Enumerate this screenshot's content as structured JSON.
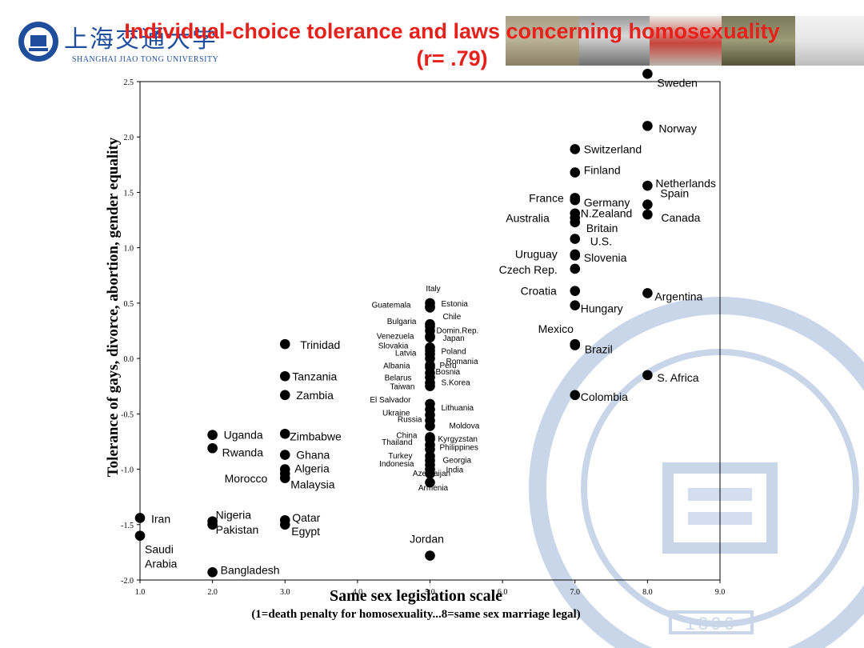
{
  "title_line1": "Individual-choice tolerance and laws concerning homosexuality",
  "title_line2": "(r= .79)",
  "logo": {
    "name_cn": "上海交通大学",
    "name_en": "SHANGHAI JIAO TONG UNIVERSITY",
    "year": "1896"
  },
  "colors": {
    "title": "#e8201c",
    "brand": "#1f4e9c",
    "point": "#000000"
  },
  "chart_data": {
    "type": "scatter",
    "xlabel": "Same sex legislation scale",
    "xlabel_note": "(1=death penalty for homosexuality...8=same sex marriage legal)",
    "ylabel": "Tolerance of gays, divorce, abortion, gender equality",
    "xlim": [
      1.0,
      9.0
    ],
    "ylim": [
      -2.0,
      2.5
    ],
    "x_ticks": [
      "1.0",
      "2.0",
      "3.0",
      "4.0",
      "5.0",
      "6.0",
      "7.0",
      "8.0",
      "9.0"
    ],
    "y_ticks": [
      "2.5",
      "2.0",
      "1.5",
      "1.0",
      "0.5",
      "0.0",
      "-0.5",
      "-1.0",
      "-1.5",
      "-2.0"
    ],
    "y_tick_values": [
      2.5,
      2.0,
      1.5,
      1.0,
      0.5,
      0.0,
      -0.5,
      -1.0,
      -1.5,
      -2.0
    ],
    "grid": false,
    "points": [
      {
        "label": "Sweden",
        "x": 8,
        "y": 2.57
      },
      {
        "label": "Norway",
        "x": 8,
        "y": 2.1
      },
      {
        "label": "Switzerland",
        "x": 7,
        "y": 1.89
      },
      {
        "label": "Finland",
        "x": 7,
        "y": 1.68
      },
      {
        "label": "Netherlands",
        "x": 8,
        "y": 1.56
      },
      {
        "label": "France",
        "x": 7,
        "y": 1.45
      },
      {
        "label": "Germany",
        "x": 7,
        "y": 1.43
      },
      {
        "label": "Spain",
        "x": 8,
        "y": 1.39
      },
      {
        "label": "N.Zealand",
        "x": 7,
        "y": 1.31
      },
      {
        "label": "Canada",
        "x": 8,
        "y": 1.3
      },
      {
        "label": "Australia",
        "x": 7,
        "y": 1.27
      },
      {
        "label": "Britain",
        "x": 7,
        "y": 1.23
      },
      {
        "label": "U.S.",
        "x": 7,
        "y": 1.08
      },
      {
        "label": "Slovenia",
        "x": 7,
        "y": 0.94
      },
      {
        "label": "Uruguay",
        "x": 7,
        "y": 0.93
      },
      {
        "label": "Czech Rep.",
        "x": 7,
        "y": 0.81
      },
      {
        "label": "Croatia",
        "x": 7,
        "y": 0.61
      },
      {
        "label": "Argentina",
        "x": 8,
        "y": 0.59
      },
      {
        "label": "Hungary",
        "x": 7,
        "y": 0.48
      },
      {
        "label": "Italy",
        "x": 5,
        "y": 0.5
      },
      {
        "label": "Estonia",
        "x": 5,
        "y": 0.47
      },
      {
        "label": "Guatemala",
        "x": 5,
        "y": 0.46
      },
      {
        "label": "Chile",
        "x": 5,
        "y": 0.31
      },
      {
        "label": "Bulgaria",
        "x": 5,
        "y": 0.29
      },
      {
        "label": "Domin.Rep.",
        "x": 5,
        "y": 0.25
      },
      {
        "label": "Venezuela",
        "x": 5,
        "y": 0.2
      },
      {
        "label": "Japan",
        "x": 5,
        "y": 0.19
      },
      {
        "label": "Mexico",
        "x": 7,
        "y": 0.13
      },
      {
        "label": "Brazil",
        "x": 7,
        "y": 0.12
      },
      {
        "label": "Trinidad",
        "x": 3,
        "y": 0.13
      },
      {
        "label": "Slovakia",
        "x": 5,
        "y": 0.1
      },
      {
        "label": "Poland",
        "x": 5,
        "y": 0.07
      },
      {
        "label": "Latvia",
        "x": 5,
        "y": 0.04
      },
      {
        "label": "Romania",
        "x": 5,
        "y": 0.0
      },
      {
        "label": "Albania",
        "x": 5,
        "y": -0.06
      },
      {
        "label": "Peru",
        "x": 5,
        "y": -0.08
      },
      {
        "label": "S. Africa",
        "x": 8,
        "y": -0.15
      },
      {
        "label": "Tanzania",
        "x": 3,
        "y": -0.16
      },
      {
        "label": "Bosnia",
        "x": 5,
        "y": -0.13
      },
      {
        "label": "Belarus",
        "x": 5,
        "y": -0.17
      },
      {
        "label": "S.Korea",
        "x": 5,
        "y": -0.22
      },
      {
        "label": "Taiwan",
        "x": 5,
        "y": -0.25
      },
      {
        "label": "Zambia",
        "x": 3,
        "y": -0.33
      },
      {
        "label": "Colombia",
        "x": 7,
        "y": -0.33
      },
      {
        "label": "El Salvador",
        "x": 5,
        "y": -0.41
      },
      {
        "label": "Lithuania",
        "x": 5,
        "y": -0.46
      },
      {
        "label": "Ukraine",
        "x": 5,
        "y": -0.51
      },
      {
        "label": "Russia",
        "x": 5,
        "y": -0.56
      },
      {
        "label": "Moldova",
        "x": 5,
        "y": -0.61
      },
      {
        "label": "Uganda",
        "x": 2,
        "y": -0.69
      },
      {
        "label": "Zimbabwe",
        "x": 3,
        "y": -0.68
      },
      {
        "label": "China",
        "x": 5,
        "y": -0.71
      },
      {
        "label": "Kyrgyzstan",
        "x": 5,
        "y": -0.73
      },
      {
        "label": "Thailand",
        "x": 5,
        "y": -0.78
      },
      {
        "label": "Philippines",
        "x": 5,
        "y": -0.82
      },
      {
        "label": "Rwanda",
        "x": 2,
        "y": -0.81
      },
      {
        "label": "Ghana",
        "x": 3,
        "y": -0.87
      },
      {
        "label": "Turkey",
        "x": 5,
        "y": -0.88
      },
      {
        "label": "Georgia",
        "x": 5,
        "y": -0.92
      },
      {
        "label": "Indonesia",
        "x": 5,
        "y": -0.96
      },
      {
        "label": "India",
        "x": 5,
        "y": -1.0
      },
      {
        "label": "Algeria",
        "x": 3,
        "y": -1.0
      },
      {
        "label": "Morocco",
        "x": 3,
        "y": -1.04
      },
      {
        "label": "Malaysia",
        "x": 3,
        "y": -1.08
      },
      {
        "label": "Azerbaijan",
        "x": 5,
        "y": -1.04
      },
      {
        "label": "Armenia",
        "x": 5,
        "y": -1.12
      },
      {
        "label": "Iran",
        "x": 1,
        "y": -1.44
      },
      {
        "label": "Nigeria",
        "x": 2,
        "y": -1.47
      },
      {
        "label": "Qatar",
        "x": 3,
        "y": -1.46
      },
      {
        "label": "Pakistan",
        "x": 2,
        "y": -1.5
      },
      {
        "label": "Egypt",
        "x": 3,
        "y": -1.5
      },
      {
        "label": "Saudi Arabia",
        "x": 1,
        "y": -1.6
      },
      {
        "label": "Jordan",
        "x": 5,
        "y": -1.78
      },
      {
        "label": "Bangladesh",
        "x": 2,
        "y": -1.93
      }
    ]
  }
}
